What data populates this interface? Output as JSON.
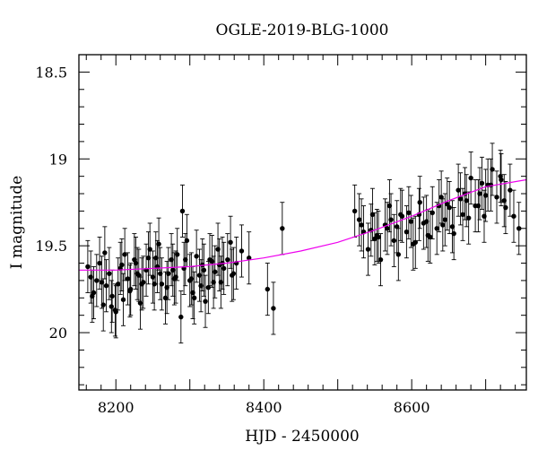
{
  "chart_data": {
    "type": "scatter",
    "title": "OGLE-2019-BLG-1000",
    "xlabel": "HJD - 2450000",
    "ylabel": "I magnitude",
    "xlim": [
      8150,
      8755
    ],
    "ylim": [
      20.33,
      18.4
    ],
    "y_inverted": true,
    "xticks": [
      8200,
      8400,
      8600
    ],
    "yticks": [
      18.5,
      19,
      19.5,
      20
    ],
    "grid": false,
    "colors": {
      "points": "#000000",
      "model": "#ee00ee",
      "frame": "#000000"
    },
    "series": [
      {
        "kind": "points_with_errorbars",
        "x": [
          8162,
          8166,
          8170,
          8174,
          8178,
          8183,
          8187,
          8191,
          8195,
          8199,
          8203,
          8208,
          8212,
          8216,
          8220,
          8225,
          8229,
          8233,
          8237,
          8241,
          8246,
          8250,
          8254,
          8258,
          8262,
          8267,
          8271,
          8275,
          8279,
          8283,
          8288,
          8292,
          8296,
          8300,
          8304,
          8309,
          8313,
          8317,
          8321,
          8325,
          8330,
          8334,
          8338,
          8342,
          8346,
          8351,
          8355,
          8359,
          8363,
          8370,
          8380,
          8405,
          8413,
          8425,
          8168,
          8181,
          8194,
          8206,
          8219,
          8231,
          8244,
          8256,
          8269,
          8281,
          8294,
          8306,
          8319,
          8332,
          8344,
          8357,
          8185,
          8210,
          8235,
          8260,
          8290,
          8315,
          8340,
          8200,
          8227,
          8252,
          8277,
          8302,
          8327,
          8523,
          8529,
          8535,
          8541,
          8547,
          8553,
          8558,
          8564,
          8570,
          8576,
          8582,
          8587,
          8593,
          8599,
          8605,
          8611,
          8616,
          8622,
          8628,
          8634,
          8640,
          8645,
          8651,
          8657,
          8663,
          8669,
          8674,
          8680,
          8686,
          8692,
          8698,
          8703,
          8709,
          8715,
          8721,
          8727,
          8733,
          8738,
          8745,
          8532,
          8550,
          8567,
          8585,
          8602,
          8620,
          8637,
          8655,
          8672,
          8690,
          8707,
          8725,
          8545,
          8572,
          8596,
          8625,
          8648,
          8677,
          8700,
          8720,
          8555,
          8580,
          8610,
          8642,
          8666,
          8695
        ],
        "y": [
          19.62,
          19.68,
          19.77,
          19.7,
          19.6,
          19.84,
          19.73,
          19.66,
          19.79,
          19.87,
          19.72,
          19.61,
          19.55,
          19.69,
          19.75,
          19.58,
          19.66,
          19.83,
          19.71,
          19.64,
          19.52,
          19.68,
          19.57,
          19.49,
          19.72,
          19.8,
          19.66,
          19.58,
          19.69,
          19.55,
          19.91,
          19.63,
          19.47,
          19.7,
          19.77,
          19.56,
          19.67,
          19.61,
          19.82,
          19.74,
          19.59,
          19.65,
          19.52,
          19.71,
          19.63,
          19.58,
          19.48,
          19.66,
          19.6,
          19.53,
          19.57,
          19.75,
          19.86,
          19.4,
          19.79,
          19.71,
          19.85,
          19.63,
          19.76,
          19.67,
          19.57,
          19.62,
          19.74,
          19.68,
          19.58,
          19.8,
          19.64,
          19.71,
          19.6,
          19.67,
          19.54,
          19.81,
          19.72,
          19.66,
          19.3,
          19.73,
          19.61,
          19.88,
          19.6,
          19.72,
          19.64,
          19.69,
          19.58,
          19.3,
          19.35,
          19.42,
          19.52,
          19.32,
          19.44,
          19.58,
          19.38,
          19.27,
          19.47,
          19.55,
          19.33,
          19.42,
          19.36,
          19.48,
          19.25,
          19.37,
          19.44,
          19.31,
          19.4,
          19.22,
          19.35,
          19.28,
          19.43,
          19.18,
          19.32,
          19.24,
          19.11,
          19.27,
          19.2,
          19.33,
          19.15,
          19.06,
          19.22,
          19.12,
          19.28,
          19.18,
          19.33,
          19.4,
          19.38,
          19.46,
          19.4,
          19.32,
          19.49,
          19.36,
          19.27,
          19.39,
          19.2,
          19.27,
          19.15,
          19.24,
          19.41,
          19.35,
          19.31,
          19.45,
          19.26,
          19.34,
          19.21,
          19.1,
          19.45,
          19.39,
          19.32,
          19.38,
          19.23,
          19.14
        ],
        "yerr": 0.15
      },
      {
        "kind": "model_curve",
        "x": [
          8150,
          8200,
          8250,
          8300,
          8350,
          8400,
          8450,
          8500,
          8550,
          8600,
          8650,
          8700,
          8755
        ],
        "y": [
          19.64,
          19.64,
          19.63,
          19.62,
          19.6,
          19.57,
          19.53,
          19.48,
          19.41,
          19.33,
          19.24,
          19.16,
          19.12
        ]
      }
    ]
  }
}
